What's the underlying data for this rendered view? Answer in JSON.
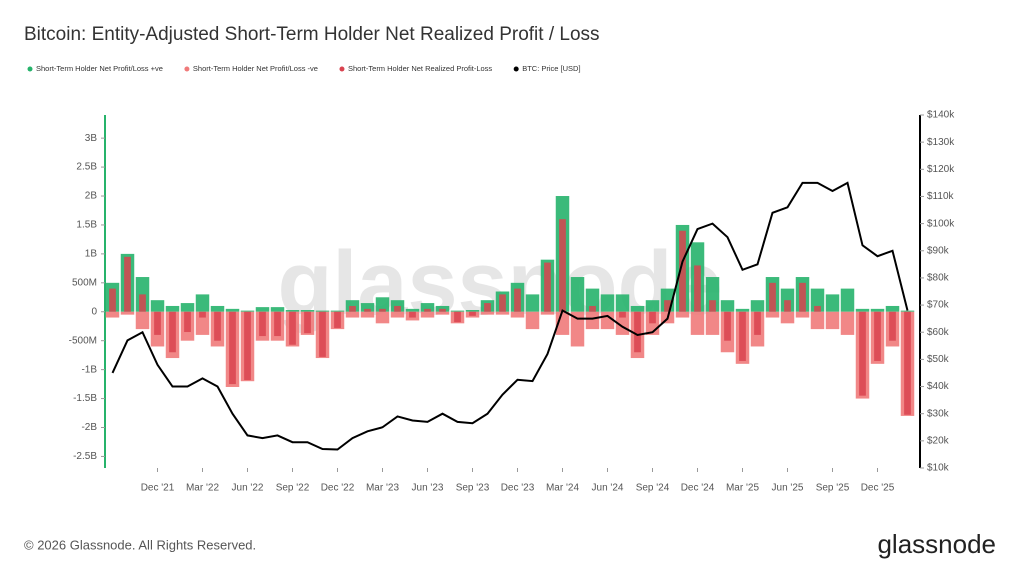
{
  "chart_data": {
    "type": "bar-line",
    "title": "Bitcoin: Entity-Adjusted Short-Term Holder Net Realized Profit / Loss",
    "footer": "© 2026 Glassnode. All Rights Reserved.",
    "logo": "glassnode",
    "watermark": "glassnode",
    "x": [
      "2021-09",
      "2021-10",
      "2021-11",
      "2021-12",
      "2022-01",
      "2022-02",
      "2022-03",
      "2022-04",
      "2022-05",
      "2022-06",
      "2022-07",
      "2022-08",
      "2022-09",
      "2022-10",
      "2022-11",
      "2022-12",
      "2023-01",
      "2023-02",
      "2023-03",
      "2023-04",
      "2023-05",
      "2023-06",
      "2023-07",
      "2023-08",
      "2023-09",
      "2023-10",
      "2023-11",
      "2023-12",
      "2024-01",
      "2024-02",
      "2024-03",
      "2024-04",
      "2024-05",
      "2024-06",
      "2024-07",
      "2024-08",
      "2024-09",
      "2024-10",
      "2024-11",
      "2024-12",
      "2025-01",
      "2025-02",
      "2025-03",
      "2025-04",
      "2025-05",
      "2025-06",
      "2025-07",
      "2025-08",
      "2025-09",
      "2025-10",
      "2025-11",
      "2025-12",
      "2026-01",
      "2026-02"
    ],
    "series": [
      {
        "name": "Short-Term Holder Net Profit/Loss +ve",
        "color": "#26b36b",
        "values": [
          500000000.0,
          1000000000.0,
          600000000.0,
          200000000.0,
          100000000.0,
          150000000.0,
          300000000.0,
          100000000.0,
          50000000.0,
          20000000.0,
          80000000.0,
          80000000.0,
          30000000.0,
          30000000.0,
          20000000.0,
          20000000.0,
          200000000.0,
          150000000.0,
          250000000.0,
          200000000.0,
          50000000.0,
          150000000.0,
          100000000.0,
          20000000.0,
          30000000.0,
          200000000.0,
          350000000.0,
          500000000.0,
          300000000.0,
          900000000.0,
          2000000000.0,
          600000000.0,
          400000000.0,
          300000000.0,
          300000000.0,
          100000000.0,
          200000000.0,
          400000000.0,
          1500000000.0,
          1200000000.0,
          600000000.0,
          200000000.0,
          50000000.0,
          200000000.0,
          600000000.0,
          400000000.0,
          600000000.0,
          400000000.0,
          300000000.0,
          400000000.0,
          50000000.0,
          50000000.0,
          100000000.0,
          20000000.0
        ]
      },
      {
        "name": "Short-Term Holder Net Profit/Loss -ve",
        "color": "#f07a7a",
        "values": [
          -100000000.0,
          -50000000.0,
          -300000000.0,
          -600000000.0,
          -800000000.0,
          -500000000.0,
          -400000000.0,
          -600000000.0,
          -1300000000.0,
          -1200000000.0,
          -500000000.0,
          -500000000.0,
          -600000000.0,
          -400000000.0,
          -800000000.0,
          -300000000.0,
          -100000000.0,
          -100000000.0,
          -200000000.0,
          -100000000.0,
          -150000000.0,
          -100000000.0,
          -50000000.0,
          -200000000.0,
          -100000000.0,
          -50000000.0,
          -50000000.0,
          -100000000.0,
          -300000000.0,
          -50000000.0,
          -400000000.0,
          -600000000.0,
          -300000000.0,
          -300000000.0,
          -400000000.0,
          -800000000.0,
          -400000000.0,
          -200000000.0,
          -100000000.0,
          -400000000.0,
          -400000000.0,
          -700000000.0,
          -900000000.0,
          -600000000.0,
          -100000000.0,
          -200000000.0,
          -100000000.0,
          -300000000.0,
          -300000000.0,
          -400000000.0,
          -1500000000.0,
          -900000000.0,
          -600000000.0,
          -1800000000.0
        ]
      },
      {
        "name": "Short-Term Holder Net Realized Profit-Loss",
        "color": "#d9434f",
        "values": [
          400000000.0,
          950000000.0,
          300000000.0,
          -400000000.0,
          -700000000.0,
          -350000000.0,
          -100000000.0,
          -500000000.0,
          -1250000000.0,
          -1180000000.0,
          -420000000.0,
          -420000000.0,
          -570000000.0,
          -370000000.0,
          -780000000.0,
          -280000000.0,
          100000000.0,
          50000000.0,
          50000000.0,
          100000000.0,
          -100000000.0,
          50000000.0,
          50000000.0,
          -180000000.0,
          -70000000.0,
          150000000.0,
          300000000.0,
          400000000.0,
          0,
          850000000.0,
          1600000000.0,
          0,
          100000000.0,
          0,
          -100000000.0,
          -700000000.0,
          -200000000.0,
          200000000.0,
          1400000000.0,
          800000000.0,
          200000000.0,
          -500000000.0,
          -850000000.0,
          -400000000.0,
          500000000.0,
          200000000.0,
          500000000.0,
          100000000.0,
          0,
          0,
          -1450000000.0,
          -850000000.0,
          -500000000.0,
          -1780000000.0
        ]
      },
      {
        "name": "BTC: Price [USD]",
        "color": "#000000",
        "axis": "y2",
        "values": [
          45000,
          57000,
          60000,
          48000,
          40000,
          40000,
          43000,
          40000,
          30000,
          22000,
          21000,
          22000,
          19500,
          19500,
          17000,
          16800,
          21000,
          23500,
          25000,
          29000,
          27500,
          27000,
          30000,
          27000,
          26500,
          30000,
          37000,
          42500,
          42000,
          52000,
          68000,
          65000,
          65000,
          66000,
          62000,
          59000,
          60000,
          65000,
          86000,
          98000,
          100000,
          95000,
          83000,
          85000,
          104000,
          106000,
          115000,
          115000,
          112000,
          115000,
          92000,
          88000,
          90000,
          68000
        ]
      }
    ],
    "ylim": [
      -2700000000.0,
      3400000000.0
    ],
    "yticks": [
      {
        "value": -2500000000.0,
        "label": "-2.5B"
      },
      {
        "value": -2000000000.0,
        "label": "-2B"
      },
      {
        "value": -1500000000.0,
        "label": "-1.5B"
      },
      {
        "value": -1000000000.0,
        "label": "-1B"
      },
      {
        "value": -500000000.0,
        "label": "-500M"
      },
      0,
      {
        "value": 500000000.0,
        "label": "500M"
      },
      {
        "value": 1000000000.0,
        "label": "1B"
      },
      {
        "value": 1500000000.0,
        "label": "1.5B"
      },
      {
        "value": 2000000000.0,
        "label": "2B"
      },
      {
        "value": 2500000000.0,
        "label": "2.5B"
      },
      {
        "value": 3000000000.0,
        "label": "3B"
      }
    ],
    "y2lim": [
      10000,
      140000
    ],
    "y2ticks": [
      {
        "value": 10000,
        "label": "$10k"
      },
      {
        "value": 20000,
        "label": "$20k"
      },
      {
        "value": 30000,
        "label": "$30k"
      },
      {
        "value": 40000,
        "label": "$40k"
      },
      {
        "value": 50000,
        "label": "$50k"
      },
      {
        "value": 60000,
        "label": "$60k"
      },
      {
        "value": 70000,
        "label": "$70k"
      },
      {
        "value": 80000,
        "label": "$80k"
      },
      {
        "value": 90000,
        "label": "$90k"
      },
      {
        "value": 100000,
        "label": "$100k"
      },
      {
        "value": 110000,
        "label": "$110k"
      },
      {
        "value": 120000,
        "label": "$120k"
      },
      {
        "value": 130000,
        "label": "$130k"
      },
      {
        "value": 140000,
        "label": "$140k"
      }
    ],
    "xticks": [
      {
        "value": "2021-12",
        "label": "Dec '21"
      },
      {
        "value": "2022-03",
        "label": "Mar '22"
      },
      {
        "value": "2022-06",
        "label": "Jun '22"
      },
      {
        "value": "2022-09",
        "label": "Sep '22"
      },
      {
        "value": "2022-12",
        "label": "Dec '22"
      },
      {
        "value": "2023-03",
        "label": "Mar '23"
      },
      {
        "value": "2023-06",
        "label": "Jun '23"
      },
      {
        "value": "2023-09",
        "label": "Sep '23"
      },
      {
        "value": "2023-12",
        "label": "Dec '23"
      },
      {
        "value": "2024-03",
        "label": "Mar '24"
      },
      {
        "value": "2024-06",
        "label": "Jun '24"
      },
      {
        "value": "2024-09",
        "label": "Sep '24"
      },
      {
        "value": "2024-12",
        "label": "Dec '24"
      },
      {
        "value": "2025-03",
        "label": "Mar '25"
      },
      {
        "value": "2025-06",
        "label": "Jun '25"
      },
      {
        "value": "2025-09",
        "label": "Sep '25"
      },
      {
        "value": "2025-12",
        "label": "Dec '25"
      }
    ],
    "left_axis_color": "#26b36b"
  }
}
